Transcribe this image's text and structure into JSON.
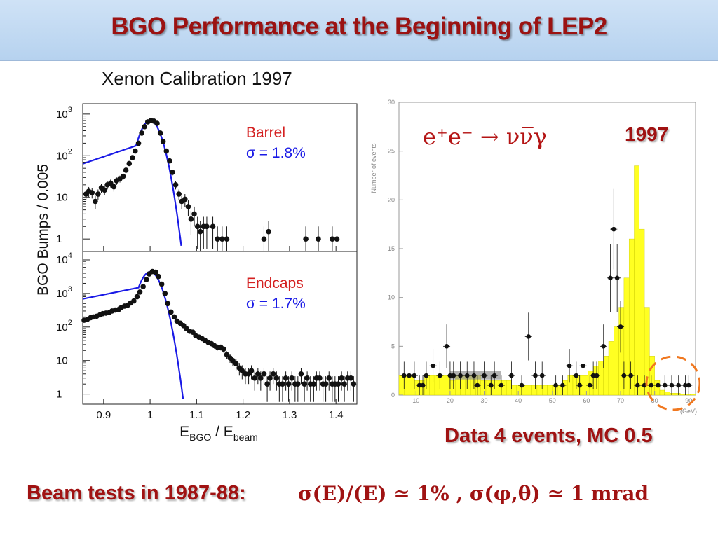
{
  "slide": {
    "title": "BGO Performance at the Beginning of  LEP2",
    "left_heading": "Xenon Calibration 1997",
    "process": "e⁺e⁻ → νν̅γ",
    "year_badge": "1997",
    "data_note": "Data 4 events, MC 0.5",
    "beam_tests_label": "Beam tests in 1987-88:",
    "beam_tests_formula": "σ(E)/(E) ≃ 1% ,  σ(φ,θ) ≃ 1 mrad"
  },
  "colors": {
    "title": "#9b1212",
    "header_bg": "#c4dbf3",
    "fit": "#1a1ae6",
    "histogram": "#ffff22",
    "mc_shade": "#888888",
    "circle": "#f07820"
  },
  "chart_data": [
    {
      "type": "scatter",
      "panel": "Barrel",
      "label": "Barrel",
      "sigma": "σ = 1.8%",
      "ylabel": "BGO Bumps / 0.005",
      "xlabel": "E_BGO / E_beam",
      "xlabel_main": "E",
      "xlabel_sub1": "BGO",
      "xlabel_mid": " / E",
      "xlabel_sub2": "beam",
      "xlim": [
        0.855,
        1.445
      ],
      "ylim_log10": [
        -0.3,
        3.25
      ],
      "y_log": true,
      "x_ticks": [
        "0.9",
        "1",
        "1.1",
        "1.2",
        "1.3",
        "1.4"
      ],
      "x_tick_values": [
        0.9,
        1.0,
        1.1,
        1.2,
        1.3,
        1.4
      ],
      "y_ticks": [
        {
          "v": 1000,
          "base": "10",
          "exp": "3"
        },
        {
          "v": 100,
          "base": "10",
          "exp": "2"
        },
        {
          "v": 10,
          "base": "10",
          "exp": ""
        },
        {
          "v": 1,
          "base": "1",
          "exp": ""
        }
      ],
      "points": {
        "x": [
          0.862,
          0.868,
          0.875,
          0.882,
          0.888,
          0.895,
          0.902,
          0.908,
          0.915,
          0.922,
          0.928,
          0.935,
          0.942,
          0.948,
          0.955,
          0.962,
          0.968,
          0.975,
          0.982,
          0.988,
          0.995,
          1.002,
          1.008,
          1.015,
          1.022,
          1.028,
          1.035,
          1.042,
          1.048,
          1.055,
          1.062,
          1.068,
          1.075,
          1.082,
          1.088,
          1.095,
          1.102,
          1.108,
          1.115,
          1.122,
          1.135,
          1.145,
          1.155,
          1.165,
          1.245,
          1.255,
          1.335,
          1.362,
          1.392,
          1.402
        ],
        "y": [
          12,
          14,
          13,
          8,
          12,
          17,
          15,
          20,
          22,
          18,
          25,
          28,
          32,
          45,
          65,
          90,
          130,
          200,
          350,
          500,
          650,
          700,
          680,
          600,
          350,
          220,
          130,
          75,
          40,
          20,
          12,
          8,
          9,
          6,
          3,
          4,
          2,
          1.5,
          2,
          2,
          2,
          1,
          1,
          1,
          1,
          1.5,
          1,
          1,
          1,
          1
        ]
      },
      "fit": {
        "mean": 1.0,
        "sigma": 0.018,
        "peak": 700,
        "tail_slope": 0.115,
        "tail_start": 0.97
      }
    },
    {
      "type": "scatter",
      "panel": "Endcaps",
      "label": "Endcaps",
      "sigma": "σ = 1.7%",
      "xlim": [
        0.855,
        1.445
      ],
      "ylim_log10": [
        -0.3,
        4.25
      ],
      "y_log": true,
      "y_ticks": [
        {
          "v": 10000,
          "base": "10",
          "exp": "4"
        },
        {
          "v": 1000,
          "base": "10",
          "exp": "3"
        },
        {
          "v": 100,
          "base": "10",
          "exp": "2"
        },
        {
          "v": 10,
          "base": "10",
          "exp": ""
        },
        {
          "v": 1,
          "base": "1",
          "exp": ""
        }
      ],
      "points": {
        "x": [
          0.858,
          0.865,
          0.872,
          0.878,
          0.885,
          0.892,
          0.898,
          0.905,
          0.912,
          0.918,
          0.925,
          0.932,
          0.938,
          0.945,
          0.952,
          0.958,
          0.965,
          0.972,
          0.978,
          0.985,
          0.992,
          0.998,
          1.005,
          1.012,
          1.018,
          1.025,
          1.032,
          1.038,
          1.045,
          1.052,
          1.058,
          1.065,
          1.072,
          1.078,
          1.085,
          1.092,
          1.098,
          1.105,
          1.112,
          1.118,
          1.125,
          1.132,
          1.138,
          1.145,
          1.152,
          1.158,
          1.165,
          1.172,
          1.178,
          1.185,
          1.192,
          1.198,
          1.205,
          1.212,
          1.218,
          1.225,
          1.232,
          1.238,
          1.245,
          1.252,
          1.258,
          1.265,
          1.272,
          1.278,
          1.285,
          1.292,
          1.298,
          1.305,
          1.312,
          1.318,
          1.325,
          1.332,
          1.338,
          1.345,
          1.352,
          1.358,
          1.365,
          1.372,
          1.378,
          1.385,
          1.392,
          1.398,
          1.405,
          1.412,
          1.418,
          1.425,
          1.432,
          1.438
        ],
        "y": [
          160,
          170,
          190,
          200,
          210,
          230,
          250,
          260,
          270,
          300,
          320,
          330,
          380,
          420,
          450,
          520,
          600,
          800,
          1100,
          1600,
          2600,
          3800,
          4500,
          4300,
          3200,
          1900,
          1000,
          500,
          280,
          200,
          150,
          130,
          110,
          90,
          75,
          70,
          55,
          50,
          45,
          40,
          35,
          32,
          28,
          25,
          25,
          22,
          15,
          12,
          10,
          8,
          6,
          5,
          4,
          4,
          5,
          3,
          4,
          3,
          4,
          2,
          3,
          4,
          3,
          2,
          2,
          3,
          2,
          3,
          2,
          2,
          4,
          2,
          3,
          2,
          2,
          3,
          3,
          2,
          2,
          3,
          2,
          2,
          2,
          3,
          2,
          3,
          3,
          2
        ]
      },
      "fit": {
        "mean": 1.0,
        "sigma": 0.017,
        "peak": 4400,
        "tail_slope": 0.155,
        "tail_start": 0.975
      }
    },
    {
      "type": "bar",
      "panel": "nu-nu-gamma",
      "ylabel": "Number of events",
      "xlabel": "E_γ (GeV)",
      "xlabel_text": "(GeV)",
      "xlim": [
        5,
        92
      ],
      "ylim": [
        0,
        30
      ],
      "x_ticks": [
        10,
        20,
        30,
        40,
        50,
        60,
        70,
        80,
        90
      ],
      "y_ticks": [
        0,
        5,
        10,
        15,
        20,
        25,
        30
      ],
      "mc_histogram": {
        "bin_width": 1.5,
        "x_start": 5,
        "values": [
          2,
          2,
          2,
          1.5,
          1.5,
          2,
          2,
          2,
          2,
          2,
          1.5,
          2,
          2,
          2,
          2,
          2,
          1.5,
          1.5,
          1.5,
          1.5,
          1.5,
          1.5,
          1,
          1,
          1,
          1,
          1,
          1,
          1,
          1,
          1,
          1,
          1.5,
          2,
          2,
          2,
          2,
          2.5,
          3,
          3.5,
          4,
          5.5,
          7,
          9,
          12,
          16,
          23.5,
          17,
          9,
          4,
          1.5,
          0.5,
          0.3,
          0.2,
          0.2,
          0.1,
          0.1,
          0.1
        ]
      },
      "data_points": {
        "x": [
          6.5,
          8,
          9.5,
          11,
          12,
          13,
          15,
          17,
          19,
          20,
          21,
          23,
          25,
          27,
          28,
          30,
          32,
          33,
          35,
          38,
          41,
          43,
          45,
          47,
          51,
          53,
          55,
          57,
          58,
          59,
          61,
          62,
          63,
          65,
          67,
          68,
          69,
          70,
          71,
          73,
          75,
          77,
          79,
          81,
          83,
          85,
          87,
          89,
          90
        ],
        "y": [
          2,
          2,
          2,
          1,
          1,
          2,
          3,
          2,
          5,
          2,
          2,
          2,
          2,
          2,
          1,
          2,
          1,
          2,
          1,
          2,
          1,
          6,
          2,
          2,
          1,
          1,
          3,
          2,
          1,
          3,
          1,
          2,
          2,
          5,
          12,
          17,
          12,
          7,
          2,
          2,
          1,
          1,
          1,
          1,
          1,
          1,
          1,
          1,
          1
        ]
      },
      "mc_shaded_region": {
        "x": [
          20,
          35
        ],
        "level": 2.5
      },
      "highlight": "dashed-circle-high-energy"
    }
  ]
}
